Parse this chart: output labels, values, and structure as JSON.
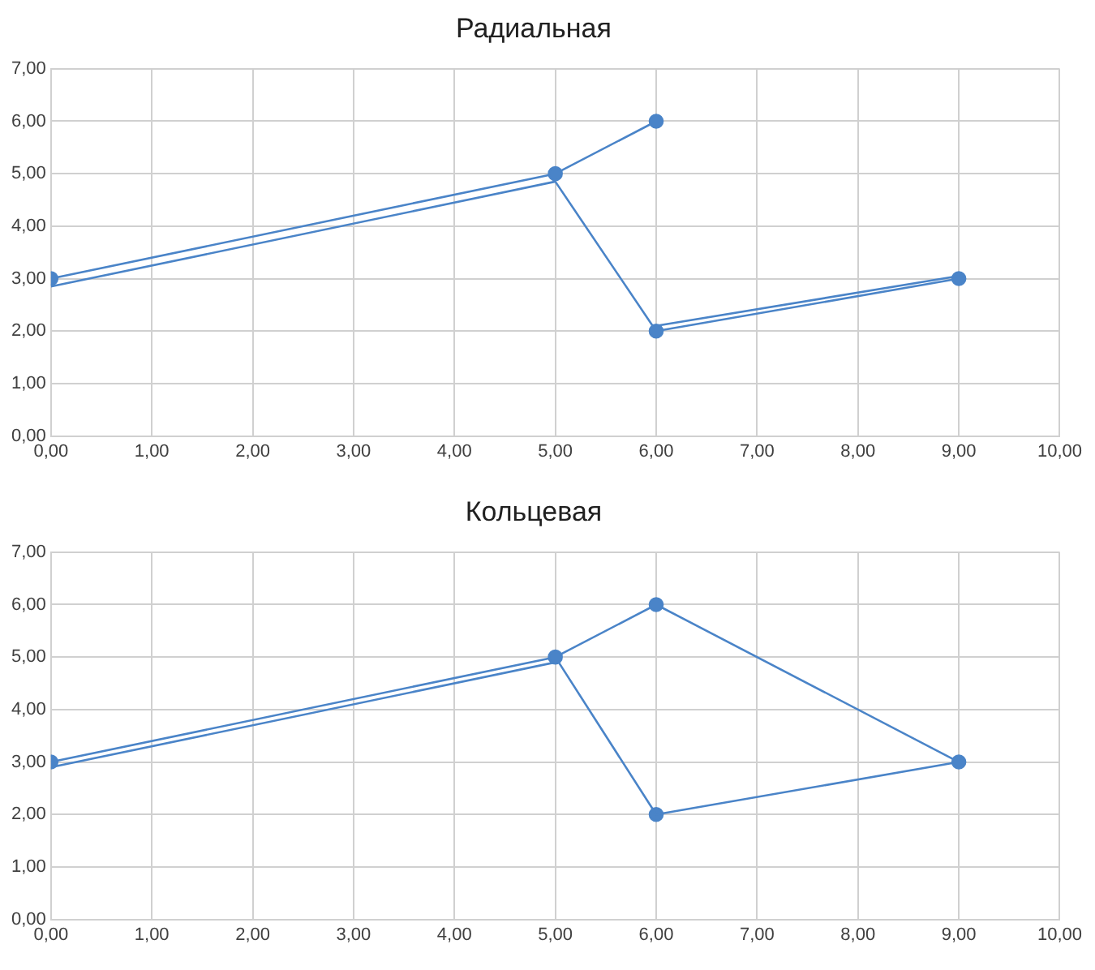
{
  "chart_data": [
    {
      "type": "line",
      "title": "Радиальная",
      "xlim": [
        0,
        10
      ],
      "ylim": [
        0,
        7
      ],
      "xticks": [
        {
          "value": 0,
          "label": "0,00"
        },
        {
          "value": 1,
          "label": "1,00"
        },
        {
          "value": 2,
          "label": "2,00"
        },
        {
          "value": 3,
          "label": "3,00"
        },
        {
          "value": 4,
          "label": "4,00"
        },
        {
          "value": 5,
          "label": "5,00"
        },
        {
          "value": 6,
          "label": "6,00"
        },
        {
          "value": 7,
          "label": "7,00"
        },
        {
          "value": 8,
          "label": "8,00"
        },
        {
          "value": 9,
          "label": "9,00"
        },
        {
          "value": 10,
          "label": "10,00"
        }
      ],
      "yticks": [
        {
          "value": 0,
          "label": "0,00"
        },
        {
          "value": 1,
          "label": "1,00"
        },
        {
          "value": 2,
          "label": "2,00"
        },
        {
          "value": 3,
          "label": "3,00"
        },
        {
          "value": 4,
          "label": "4,00"
        },
        {
          "value": 5,
          "label": "5,00"
        },
        {
          "value": 6,
          "label": "6,00"
        },
        {
          "value": 7,
          "label": "7,00"
        }
      ],
      "grid": true,
      "legend": false,
      "series": [
        {
          "color": "#4a84c8",
          "x": [
            0,
            5,
            6
          ],
          "values": [
            3,
            5,
            6
          ],
          "marker": "circle"
        },
        {
          "color": "#4a84c8",
          "x": [
            0,
            5,
            6
          ],
          "values": [
            2.85,
            4.85,
            2
          ],
          "marker": "none"
        },
        {
          "color": "#4a84c8",
          "x": [
            6,
            9
          ],
          "values": [
            2.1,
            3.05
          ],
          "marker": "none"
        },
        {
          "color": "#4a84c8",
          "x": [
            6,
            9
          ],
          "values": [
            2,
            3
          ],
          "marker": "circle"
        }
      ]
    },
    {
      "type": "line",
      "title": "Кольцевая",
      "xlim": [
        0,
        10
      ],
      "ylim": [
        0,
        7
      ],
      "xticks": [
        {
          "value": 0,
          "label": "0,00"
        },
        {
          "value": 1,
          "label": "1,00"
        },
        {
          "value": 2,
          "label": "2,00"
        },
        {
          "value": 3,
          "label": "3,00"
        },
        {
          "value": 4,
          "label": "4,00"
        },
        {
          "value": 5,
          "label": "5,00"
        },
        {
          "value": 6,
          "label": "6,00"
        },
        {
          "value": 7,
          "label": "7,00"
        },
        {
          "value": 8,
          "label": "8,00"
        },
        {
          "value": 9,
          "label": "9,00"
        },
        {
          "value": 10,
          "label": "10,00"
        }
      ],
      "yticks": [
        {
          "value": 0,
          "label": "0,00"
        },
        {
          "value": 1,
          "label": "1,00"
        },
        {
          "value": 2,
          "label": "2,00"
        },
        {
          "value": 3,
          "label": "3,00"
        },
        {
          "value": 4,
          "label": "4,00"
        },
        {
          "value": 5,
          "label": "5,00"
        },
        {
          "value": 6,
          "label": "6,00"
        },
        {
          "value": 7,
          "label": "7,00"
        }
      ],
      "grid": true,
      "legend": false,
      "series": [
        {
          "color": "#4a84c8",
          "x": [
            0,
            5,
            6,
            9
          ],
          "values": [
            3,
            5,
            6,
            3
          ],
          "marker": "circle"
        },
        {
          "color": "#4a84c8",
          "x": [
            5,
            6,
            9
          ],
          "values": [
            5,
            2,
            3
          ],
          "marker": "none"
        },
        {
          "color": "#4a84c8",
          "x": [
            6
          ],
          "values": [
            2
          ],
          "marker": "circle"
        },
        {
          "color": "#4a84c8",
          "x": [
            0,
            5
          ],
          "values": [
            2.9,
            4.9
          ],
          "marker": "none"
        }
      ]
    }
  ]
}
